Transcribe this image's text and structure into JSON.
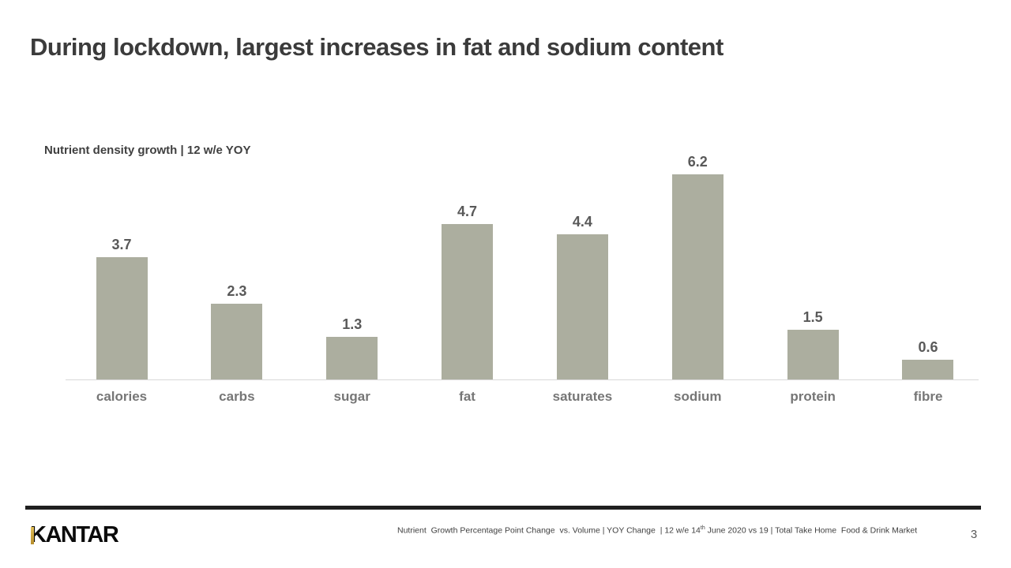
{
  "slide": {
    "title": "During lockdown, largest increases in fat and sodium content",
    "page_number": "3"
  },
  "chart": {
    "heading": "Nutrient density growth | 12 w/e YOY"
  },
  "chart_data": {
    "type": "bar",
    "title": "Nutrient density growth | 12 w/e YOY",
    "categories": [
      "calories",
      "carbs",
      "sugar",
      "fat",
      "saturates",
      "sodium",
      "protein",
      "fibre"
    ],
    "values": [
      3.7,
      2.3,
      1.3,
      4.7,
      4.4,
      6.2,
      1.5,
      0.6
    ],
    "xlabel": "",
    "ylabel": "",
    "ylim": [
      0,
      6.6
    ],
    "grid": false,
    "y_axis_visible": false,
    "data_labels": true,
    "legend": "none",
    "bar_color": "#acae9f",
    "value_label_color": "#595959",
    "category_label_color": "#767676",
    "axis_line_color": "#d8d8d8"
  },
  "footer": {
    "logo_text": "KANTAR",
    "logo_accent_top": "#e2c05a",
    "logo_accent_bottom": "#b78e2c",
    "source_part1": "Nutrient  Growth Percentage Point Change  vs. Volume | YOY Change  | 12 w/e 14",
    "source_sup": "th",
    "source_part2": " June 2020 vs 19 | Total Take Home  Food & Drink Market"
  }
}
